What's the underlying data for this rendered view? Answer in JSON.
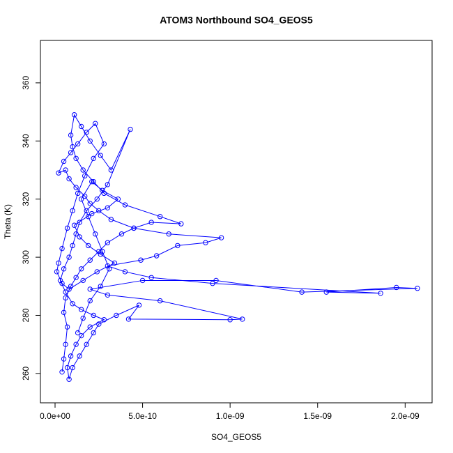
{
  "chart_data": {
    "type": "line",
    "markers": true,
    "title": "ATOM3 Northbound SO4_GEOS5",
    "x_label": "SO4_GEOS5",
    "y_label": "Theta (K)",
    "color": "#0000ff",
    "xlim": [
      -8.36e-11,
      2.154e-09
    ],
    "ylim": [
      249.9,
      374.6
    ],
    "xticks": [
      {
        "value": 0,
        "label": "0.0e+00"
      },
      {
        "value": 5e-10,
        "label": "5.0e-10"
      },
      {
        "value": 1e-09,
        "label": "1.0e-09"
      },
      {
        "value": 1.5e-09,
        "label": "1.5e-09"
      },
      {
        "value": 2e-09,
        "label": "2.0e-09"
      }
    ],
    "yticks": [
      260,
      280,
      300,
      320,
      340,
      360
    ],
    "x": [
      4e-11,
      5e-11,
      6e-11,
      7e-11,
      5e-11,
      6e-11,
      9e-11,
      1.2e-10,
      1.5e-10,
      2e-10,
      2.5e-10,
      3e-10,
      3.8e-10,
      4.5e-10,
      5.5e-10,
      7.2e-10,
      6e-10,
      4e-10,
      2.8e-10,
      2.2e-10,
      1.6e-10,
      1.2e-10,
      1e-10,
      9e-11,
      1.1e-10,
      1.5e-10,
      2e-10,
      2.6e-10,
      3.2e-10,
      4.3e-10,
      3e-10,
      2.4e-10,
      1.8e-10,
      1.4e-10,
      1.2e-10,
      1e-10,
      8e-11,
      5e-11,
      3e-11,
      6e-11,
      1e-10,
      1.5e-10,
      2.2e-10,
      2.8e-10,
      2e-10,
      1.5e-10,
      1.2e-10,
      9e-11,
      7e-11,
      8e-11,
      1e-10,
      1.4e-10,
      1.8e-10,
      2.2e-10,
      2.5e-10,
      3.5e-10,
      4.8e-10,
      4.2e-10,
      1e-09,
      1.07e-09,
      6e-10,
      3e-10,
      2e-10,
      5e-10,
      9.2e-10,
      1.41e-09,
      2.07e-09,
      1.95e-09,
      1.55e-09,
      1.86e-09,
      9e-10,
      5.5e-10,
      4e-10,
      3e-10,
      4.9e-10,
      5.8e-10,
      7e-10,
      8.6e-10,
      9.5e-10,
      6.5e-10,
      4.5e-10,
      3.2e-10,
      2.5e-10,
      2e-10,
      1.7e-10,
      1.2e-10,
      8e-11,
      6e-11,
      2e-11,
      5e-11,
      9e-11,
      1.3e-10,
      1.8e-10,
      2.3e-10,
      2.8e-10,
      2.2e-10,
      1.7e-10,
      1.3e-10,
      1e-10,
      7e-11,
      4e-11,
      2e-11,
      1e-11,
      4e-11,
      8e-11,
      1.6e-10,
      2.4e-10,
      3.4e-10,
      2.6e-10,
      1.9e-10,
      1.4e-10,
      1.1e-10,
      2.1e-10,
      3e-10,
      3.6e-10,
      2.7e-10,
      2.1e-10,
      1.5e-10,
      1.9e-10,
      2.3e-10,
      2.7e-10,
      3.1e-10,
      2.6e-10,
      2e-10,
      1.6e-10,
      1.3e-10
    ],
    "values": [
      260.5,
      265,
      270,
      276,
      281,
      286,
      290,
      293,
      296,
      299,
      302,
      305,
      308,
      310,
      312,
      311.5,
      314,
      318,
      322,
      326,
      330,
      334,
      338,
      342,
      349,
      345,
      340,
      335,
      330,
      344,
      325,
      320,
      316,
      312,
      308,
      304,
      300,
      296,
      292,
      288,
      284,
      282,
      280,
      278.5,
      276,
      273,
      270,
      266,
      262,
      258,
      262,
      266,
      270,
      274,
      277,
      280,
      283.5,
      278.7,
      278.5,
      278.7,
      285,
      287,
      289,
      292,
      292,
      288,
      289.3,
      289.6,
      288,
      287.6,
      291,
      293,
      295,
      297,
      299,
      300.5,
      304,
      305,
      306.7,
      308,
      310,
      313,
      316,
      318.5,
      321,
      324,
      327,
      330,
      329,
      333,
      336,
      339,
      343,
      346,
      339,
      334,
      328,
      322,
      316,
      310,
      303,
      298,
      295,
      291,
      289,
      292,
      295,
      298,
      301,
      304,
      307,
      311,
      315,
      317,
      320,
      323,
      326,
      320,
      314,
      308,
      302,
      296,
      290,
      285,
      279,
      274
    ]
  }
}
